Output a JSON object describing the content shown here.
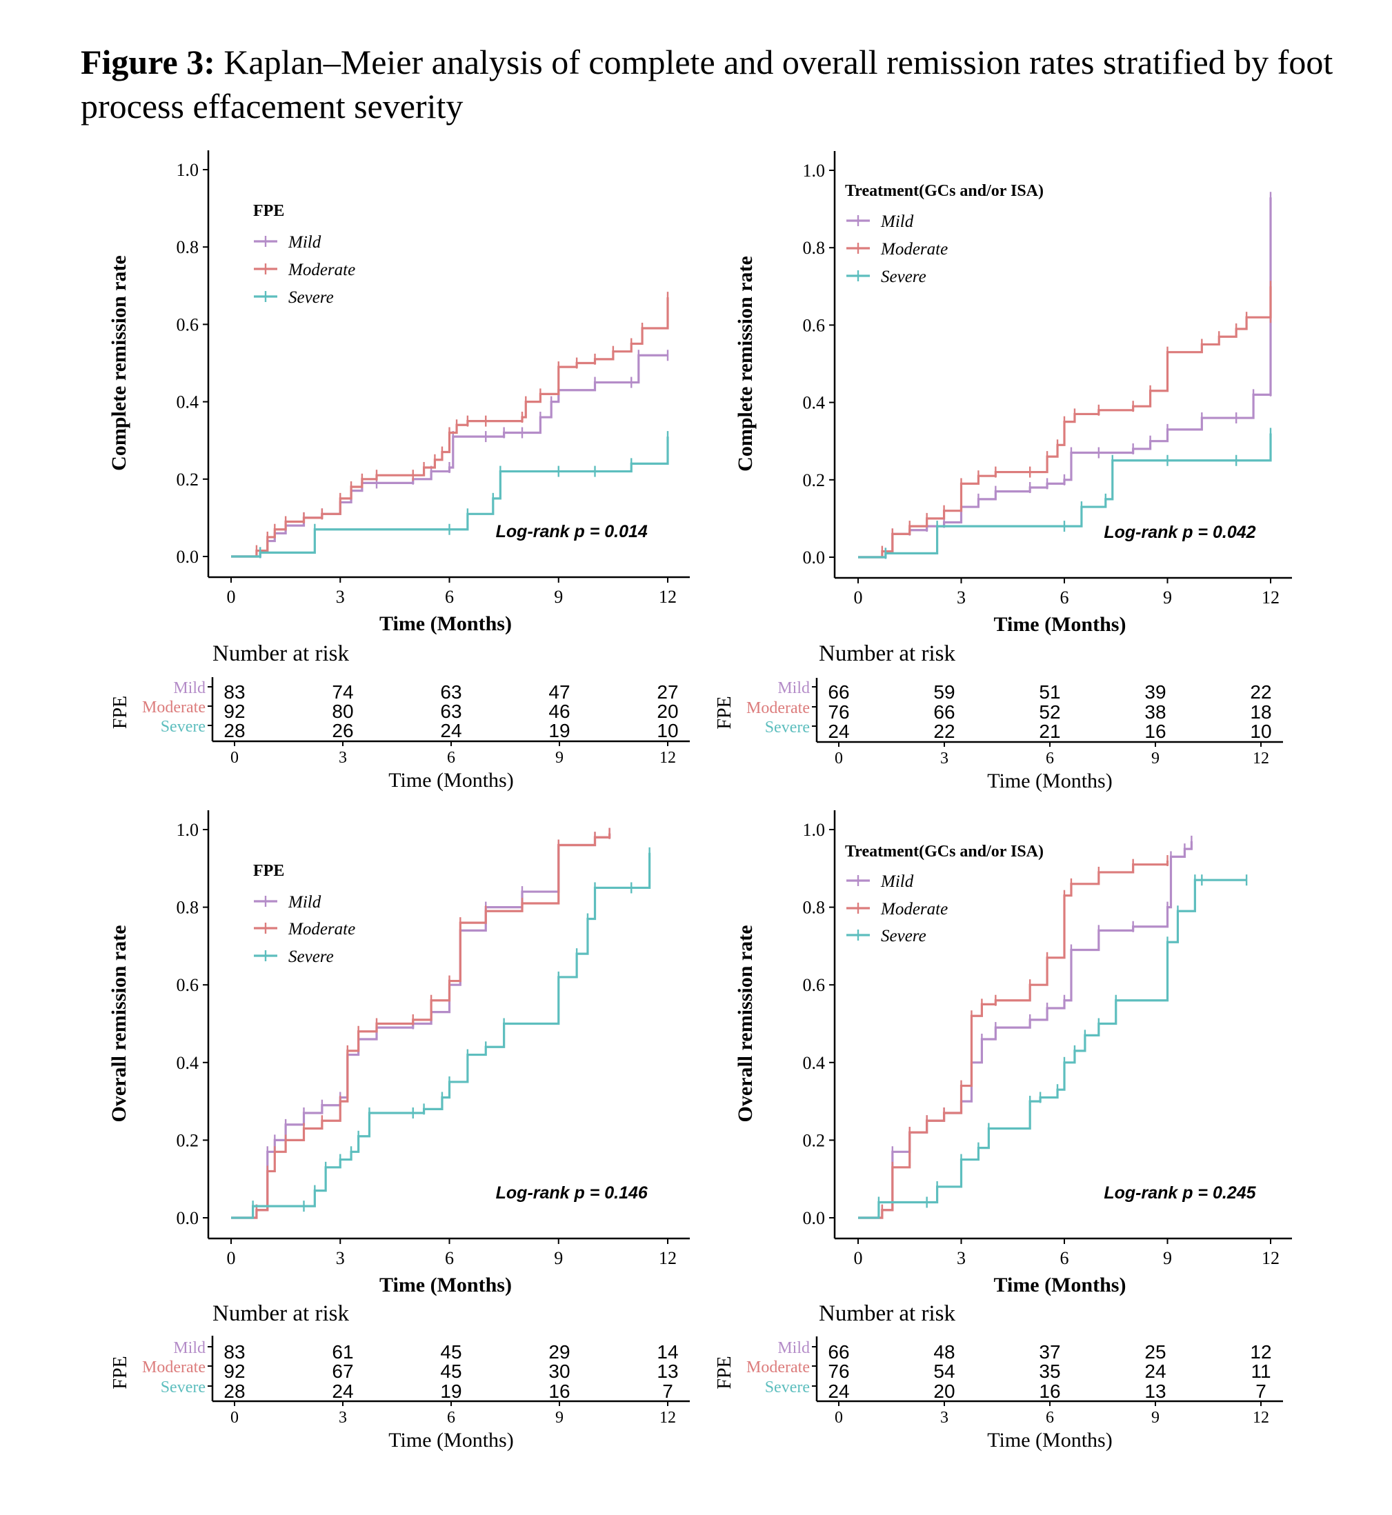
{
  "caption": {
    "label": "Figure 3:",
    "text": "Kaplan–Meier analysis of complete and overall remission rates stratified by foot process effacement severity"
  },
  "colors": {
    "Mild": "#B48CC8",
    "Moderate": "#DC7C7C",
    "Severe": "#5DBEBE"
  },
  "chart_data": [
    {
      "type": "line",
      "ylabel": "Complete remission rate",
      "xlabel": "Time (Months)",
      "x_ticks": [
        0,
        3,
        6,
        9,
        12
      ],
      "y_ticks": [
        0.0,
        0.2,
        0.4,
        0.6,
        0.8,
        1.0
      ],
      "xlim": [
        0,
        12
      ],
      "ylim": [
        0,
        1
      ],
      "legend_title": "FPE",
      "legend_position": "top-left",
      "pvalue": "Log-rank p = 0.014",
      "series": [
        {
          "name": "Mild",
          "x": [
            0,
            0.8,
            1,
            1.2,
            1.5,
            2,
            2.5,
            3,
            3.3,
            3.6,
            4,
            5,
            5.5,
            6,
            6.1,
            7,
            7.5,
            8,
            8.5,
            8.8,
            9,
            10,
            11,
            11.2,
            12
          ],
          "y": [
            0,
            0.01,
            0.04,
            0.06,
            0.08,
            0.1,
            0.11,
            0.14,
            0.17,
            0.19,
            0.19,
            0.2,
            0.22,
            0.23,
            0.31,
            0.31,
            0.32,
            0.32,
            0.36,
            0.4,
            0.43,
            0.45,
            0.45,
            0.52,
            0.52
          ]
        },
        {
          "name": "Moderate",
          "x": [
            0,
            0.7,
            1,
            1.2,
            1.5,
            2,
            2.5,
            3,
            3.3,
            3.6,
            4,
            5,
            5.3,
            5.6,
            5.8,
            6,
            6.2,
            6.5,
            7,
            8,
            8.1,
            8.5,
            9,
            9.5,
            10,
            10.5,
            11,
            11.3,
            12
          ],
          "y": [
            0,
            0.015,
            0.05,
            0.07,
            0.09,
            0.1,
            0.11,
            0.15,
            0.18,
            0.2,
            0.21,
            0.21,
            0.23,
            0.25,
            0.27,
            0.32,
            0.34,
            0.35,
            0.35,
            0.36,
            0.4,
            0.42,
            0.49,
            0.5,
            0.51,
            0.53,
            0.55,
            0.59,
            0.67
          ]
        },
        {
          "name": "Severe",
          "x": [
            0,
            0.8,
            2.3,
            6,
            6.5,
            7.2,
            7.4,
            9,
            10,
            11,
            12
          ],
          "y": [
            0,
            0.01,
            0.07,
            0.07,
            0.11,
            0.15,
            0.22,
            0.22,
            0.22,
            0.24,
            0.31
          ]
        }
      ],
      "risk_table": {
        "title": "Number at risk",
        "strata_label": "FPE",
        "xlabel": "Time (Months)",
        "rows": [
          {
            "name": "Mild",
            "values": [
              83,
              74,
              63,
              47,
              27
            ]
          },
          {
            "name": "Moderate",
            "values": [
              92,
              80,
              63,
              46,
              20
            ]
          },
          {
            "name": "Severe",
            "values": [
              28,
              26,
              24,
              19,
              10
            ]
          }
        ]
      }
    },
    {
      "type": "line",
      "ylabel": "Complete remission rate",
      "xlabel": "Time (Months)",
      "x_ticks": [
        0,
        3,
        6,
        9,
        12
      ],
      "y_ticks": [
        0.0,
        0.2,
        0.4,
        0.6,
        0.8,
        1.0
      ],
      "xlim": [
        0,
        12
      ],
      "ylim": [
        0,
        1
      ],
      "legend_title": "Treatment(GCs and/or ISA)",
      "legend_position": "top-left",
      "pvalue": "Log-rank p = 0.042",
      "series": [
        {
          "name": "Mild",
          "x": [
            0,
            0.8,
            1,
            1.5,
            2,
            2.5,
            3,
            3.5,
            4,
            5,
            5.5,
            6,
            6.2,
            7,
            8,
            8.5,
            9,
            10,
            11,
            11.5,
            12,
            12
          ],
          "y": [
            0,
            0.01,
            0.06,
            0.07,
            0.08,
            0.09,
            0.13,
            0.15,
            0.17,
            0.18,
            0.19,
            0.2,
            0.27,
            0.27,
            0.28,
            0.3,
            0.33,
            0.36,
            0.36,
            0.42,
            0.43,
            0.93
          ]
        },
        {
          "name": "Moderate",
          "x": [
            0,
            0.7,
            1,
            1.5,
            2,
            2.5,
            3,
            3.5,
            4,
            5,
            5.5,
            5.8,
            6,
            6.3,
            7,
            8,
            8.5,
            9,
            10,
            10.5,
            11,
            11.3,
            12,
            12
          ],
          "y": [
            0,
            0.015,
            0.06,
            0.08,
            0.1,
            0.12,
            0.19,
            0.21,
            0.22,
            0.22,
            0.26,
            0.29,
            0.35,
            0.37,
            0.38,
            0.39,
            0.43,
            0.53,
            0.55,
            0.57,
            0.59,
            0.62,
            0.62,
            0.7
          ]
        },
        {
          "name": "Severe",
          "x": [
            0,
            0.8,
            2.3,
            6,
            6.5,
            7.2,
            7.4,
            9,
            11,
            12
          ],
          "y": [
            0,
            0.01,
            0.08,
            0.08,
            0.13,
            0.15,
            0.25,
            0.25,
            0.25,
            0.32
          ]
        }
      ],
      "risk_table": {
        "title": "Number at risk",
        "strata_label": "FPE",
        "xlabel": "Time (Months)",
        "rows": [
          {
            "name": "Mild",
            "values": [
              66,
              59,
              51,
              39,
              22
            ]
          },
          {
            "name": "Moderate",
            "values": [
              76,
              66,
              52,
              38,
              18
            ]
          },
          {
            "name": "Severe",
            "values": [
              24,
              22,
              21,
              16,
              10
            ]
          }
        ]
      }
    },
    {
      "type": "line",
      "ylabel": "Overall remission rate",
      "xlabel": "Time (Months)",
      "x_ticks": [
        0,
        3,
        6,
        9,
        12
      ],
      "y_ticks": [
        0.0,
        0.2,
        0.4,
        0.6,
        0.8,
        1.0
      ],
      "xlim": [
        0,
        12
      ],
      "ylim": [
        0,
        1
      ],
      "legend_title": "FPE",
      "legend_position": "top-left",
      "pvalue": "Log-rank p = 0.146",
      "series": [
        {
          "name": "Mild",
          "x": [
            0,
            0.7,
            1,
            1.2,
            1.5,
            2,
            2.5,
            3,
            3.2,
            3.5,
            4,
            5,
            5.5,
            6,
            6.3,
            7,
            8,
            9,
            9,
            10,
            10.4
          ],
          "y": [
            0,
            0.02,
            0.17,
            0.2,
            0.24,
            0.27,
            0.29,
            0.31,
            0.42,
            0.46,
            0.49,
            0.5,
            0.53,
            0.6,
            0.74,
            0.8,
            0.84,
            0.88,
            0.96,
            0.98,
            0.99
          ]
        },
        {
          "name": "Moderate",
          "x": [
            0,
            0.7,
            1,
            1.2,
            1.5,
            2,
            2.5,
            3,
            3.2,
            3.5,
            4,
            5,
            5.5,
            6,
            6.3,
            7,
            8,
            9,
            9,
            10,
            10.4
          ],
          "y": [
            0,
            0.02,
            0.12,
            0.17,
            0.2,
            0.23,
            0.25,
            0.3,
            0.43,
            0.48,
            0.5,
            0.51,
            0.56,
            0.61,
            0.76,
            0.79,
            0.81,
            0.83,
            0.96,
            0.98,
            0.99
          ]
        },
        {
          "name": "Severe",
          "x": [
            0,
            0.6,
            2,
            2.3,
            2.6,
            3,
            3.3,
            3.5,
            3.8,
            5,
            5.3,
            5.8,
            6,
            6.5,
            7,
            7.5,
            9,
            9.5,
            9.8,
            10,
            11,
            11.5
          ],
          "y": [
            0,
            0.03,
            0.03,
            0.07,
            0.13,
            0.15,
            0.17,
            0.21,
            0.27,
            0.27,
            0.28,
            0.31,
            0.35,
            0.42,
            0.44,
            0.5,
            0.62,
            0.68,
            0.77,
            0.85,
            0.85,
            0.94
          ]
        }
      ],
      "risk_table": {
        "title": "Number at risk",
        "strata_label": "FPE",
        "xlabel": "Time (Months)",
        "rows": [
          {
            "name": "Mild",
            "values": [
              83,
              61,
              45,
              29,
              14
            ]
          },
          {
            "name": "Moderate",
            "values": [
              92,
              67,
              45,
              30,
              13
            ]
          },
          {
            "name": "Severe",
            "values": [
              28,
              24,
              19,
              16,
              7
            ]
          }
        ]
      }
    },
    {
      "type": "line",
      "ylabel": "Overall remission rate",
      "xlabel": "Time (Months)",
      "x_ticks": [
        0,
        3,
        6,
        9,
        12
      ],
      "y_ticks": [
        0.0,
        0.2,
        0.4,
        0.6,
        0.8,
        1.0
      ],
      "xlim": [
        0,
        12
      ],
      "ylim": [
        0,
        1
      ],
      "legend_title": "Treatment(GCs and/or ISA)",
      "legend_position": "top-left",
      "pvalue": "Log-rank p = 0.245",
      "series": [
        {
          "name": "Mild",
          "x": [
            0,
            0.7,
            1,
            1.5,
            2,
            2.5,
            3,
            3.3,
            3.6,
            4,
            5,
            5.5,
            6,
            6.2,
            7,
            8,
            9,
            9.1,
            9.5,
            9.7
          ],
          "y": [
            0,
            0.02,
            0.17,
            0.22,
            0.25,
            0.27,
            0.3,
            0.4,
            0.46,
            0.49,
            0.51,
            0.54,
            0.56,
            0.69,
            0.74,
            0.75,
            0.8,
            0.93,
            0.95,
            0.97
          ]
        },
        {
          "name": "Moderate",
          "x": [
            0,
            0.7,
            1,
            1.5,
            2,
            2.5,
            3,
            3.3,
            3.6,
            4,
            5,
            5.5,
            6,
            6.2,
            7,
            8,
            9
          ],
          "y": [
            0,
            0.02,
            0.13,
            0.22,
            0.25,
            0.27,
            0.34,
            0.52,
            0.55,
            0.56,
            0.6,
            0.67,
            0.83,
            0.86,
            0.89,
            0.91,
            0.92
          ]
        },
        {
          "name": "Severe",
          "x": [
            0,
            0.6,
            2,
            2.3,
            3,
            3.5,
            3.8,
            5,
            5.3,
            5.8,
            6,
            6.3,
            6.6,
            7,
            7.5,
            9,
            9.3,
            9.8,
            10,
            11.3
          ],
          "y": [
            0,
            0.04,
            0.04,
            0.08,
            0.15,
            0.18,
            0.23,
            0.3,
            0.31,
            0.33,
            0.4,
            0.43,
            0.47,
            0.5,
            0.56,
            0.71,
            0.79,
            0.87,
            0.87,
            0.87
          ]
        }
      ],
      "risk_table": {
        "title": "Number at risk",
        "strata_label": "FPE",
        "xlabel": "Time (Months)",
        "rows": [
          {
            "name": "Mild",
            "values": [
              66,
              48,
              37,
              25,
              12
            ]
          },
          {
            "name": "Moderate",
            "values": [
              76,
              54,
              35,
              24,
              11
            ]
          },
          {
            "name": "Severe",
            "values": [
              24,
              20,
              16,
              13,
              7
            ]
          }
        ]
      }
    }
  ]
}
